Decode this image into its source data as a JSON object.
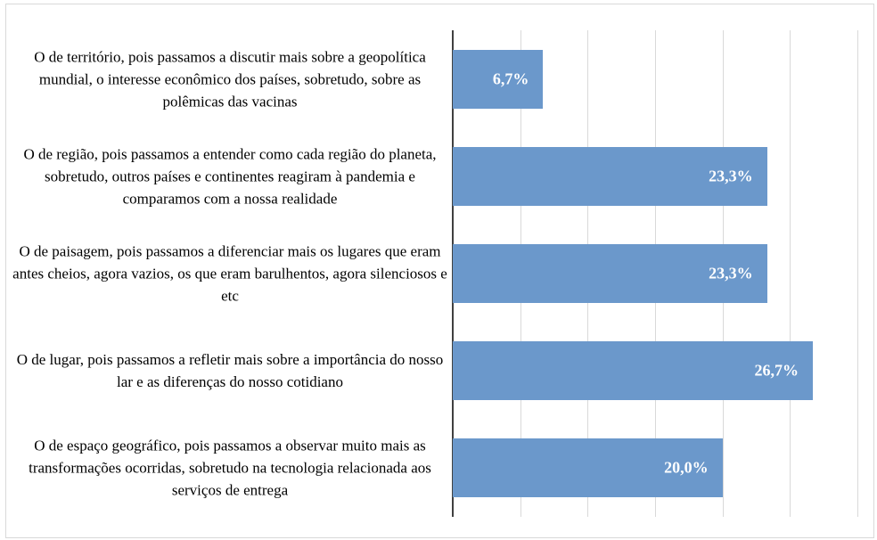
{
  "chart_data": {
    "type": "bar",
    "orientation": "horizontal",
    "categories": [
      "O de território, pois passamos a discutir mais sobre a geopolítica mundial, o interesse econômico dos países, sobretudo, sobre as polêmicas das vacinas",
      "O de região, pois passamos a entender como cada região do planeta, sobretudo, outros países e continentes reagiram à pandemia e comparamos com a nossa realidade",
      "O de paisagem, pois passamos a diferenciar mais os lugares que eram antes cheios, agora vazios, os que eram barulhentos, agora silenciosos e etc",
      "O de lugar, pois passamos a refletir mais sobre a importância do nosso lar e as diferenças do nosso cotidiano",
      "O de espaço geográfico, pois passamos a observar muito mais as transformações ocorridas, sobretudo na tecnologia relacionada aos serviços de entrega"
    ],
    "values": [
      6.7,
      23.3,
      23.3,
      26.7,
      20.0
    ],
    "value_labels": [
      "6,7%",
      "23,3%",
      "23,3%",
      "26,7%",
      "20,0%"
    ],
    "color": "#6b98cb",
    "xlim": [
      0,
      30
    ],
    "xticks": [
      0,
      5,
      10,
      15,
      20,
      25,
      30
    ],
    "grid": true
  }
}
